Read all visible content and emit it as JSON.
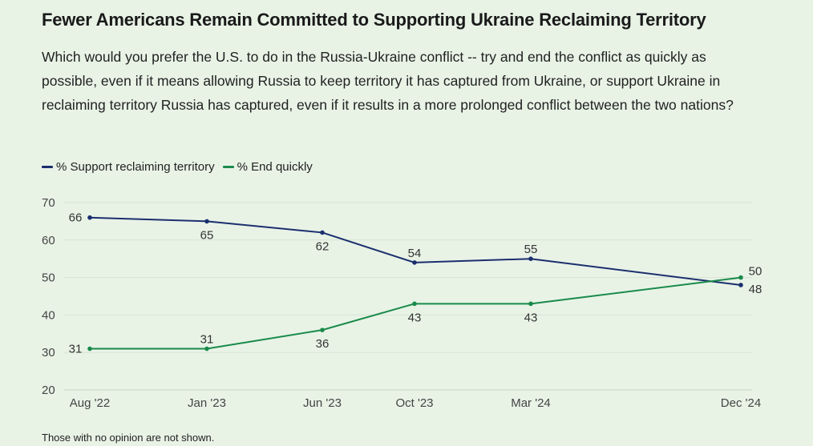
{
  "title": "Fewer Americans Remain Committed to Supporting Ukraine Reclaiming Territory",
  "subtitle": "Which would you prefer the U.S. to do in the Russia-Ukraine conflict -- try and end the conflict as quickly as possible, even if it means allowing Russia to keep territory it has captured from Ukraine, or support Ukraine in reclaiming territory Russia has captured, even if it results in a more prolonged conflict between the two nations?",
  "note": "Those with no opinion are not shown.",
  "chart_data": {
    "type": "line",
    "title": "Fewer Americans Remain Committed to Supporting Ukraine Reclaiming Territory",
    "x": [
      "Aug '22",
      "Jan '23",
      "Jun '23",
      "Oct '23",
      "Mar '24",
      "Dec '24"
    ],
    "x_dates": [
      "2022-08",
      "2023-01",
      "2023-06",
      "2023-10",
      "2024-03",
      "2024-12"
    ],
    "ylim": [
      20,
      70
    ],
    "yticks": [
      20,
      30,
      40,
      50,
      60,
      70
    ],
    "grid": true,
    "legend_position": "top-left",
    "series": [
      {
        "name": "% Support reclaiming territory",
        "color": "#1b2f6e",
        "values": [
          66,
          65,
          62,
          54,
          55,
          48
        ]
      },
      {
        "name": "% End quickly",
        "color": "#1a8a4a",
        "values": [
          31,
          31,
          36,
          43,
          43,
          50
        ]
      }
    ]
  }
}
